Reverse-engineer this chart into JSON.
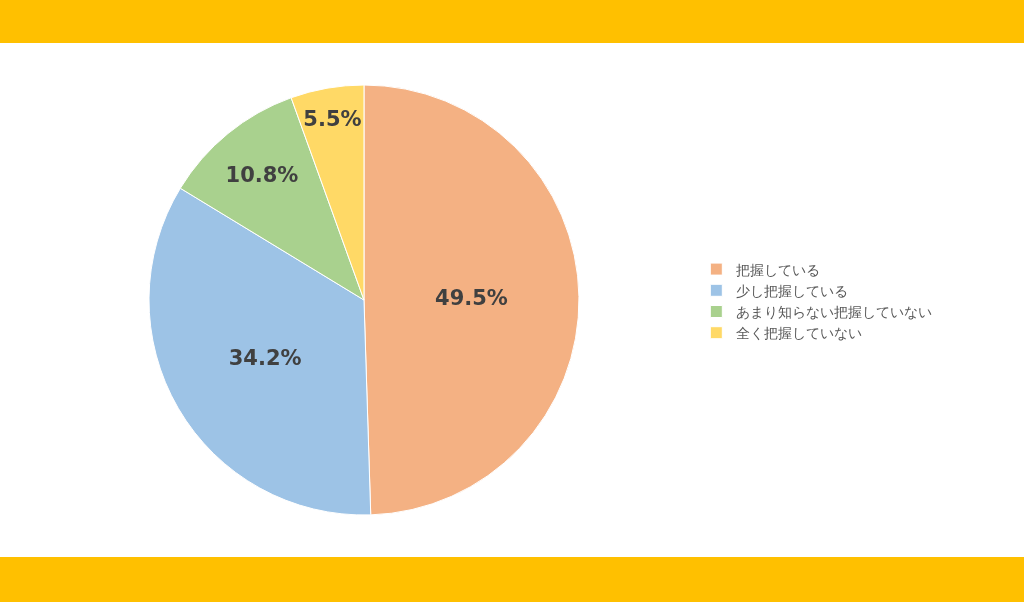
{
  "chart_data": {
    "type": "pie",
    "categories": [
      "把握している",
      "少し把握している",
      "あまり知らない把握していない",
      "全く把握していない"
    ],
    "values": [
      49.5,
      34.2,
      10.8,
      5.5
    ],
    "colors": [
      "#f4b183",
      "#9dc3e6",
      "#a9d18e",
      "#ffd966"
    ],
    "value_labels": [
      "49.5%",
      "34.2%",
      "10.8%",
      "5.5%"
    ],
    "legend": "right"
  }
}
